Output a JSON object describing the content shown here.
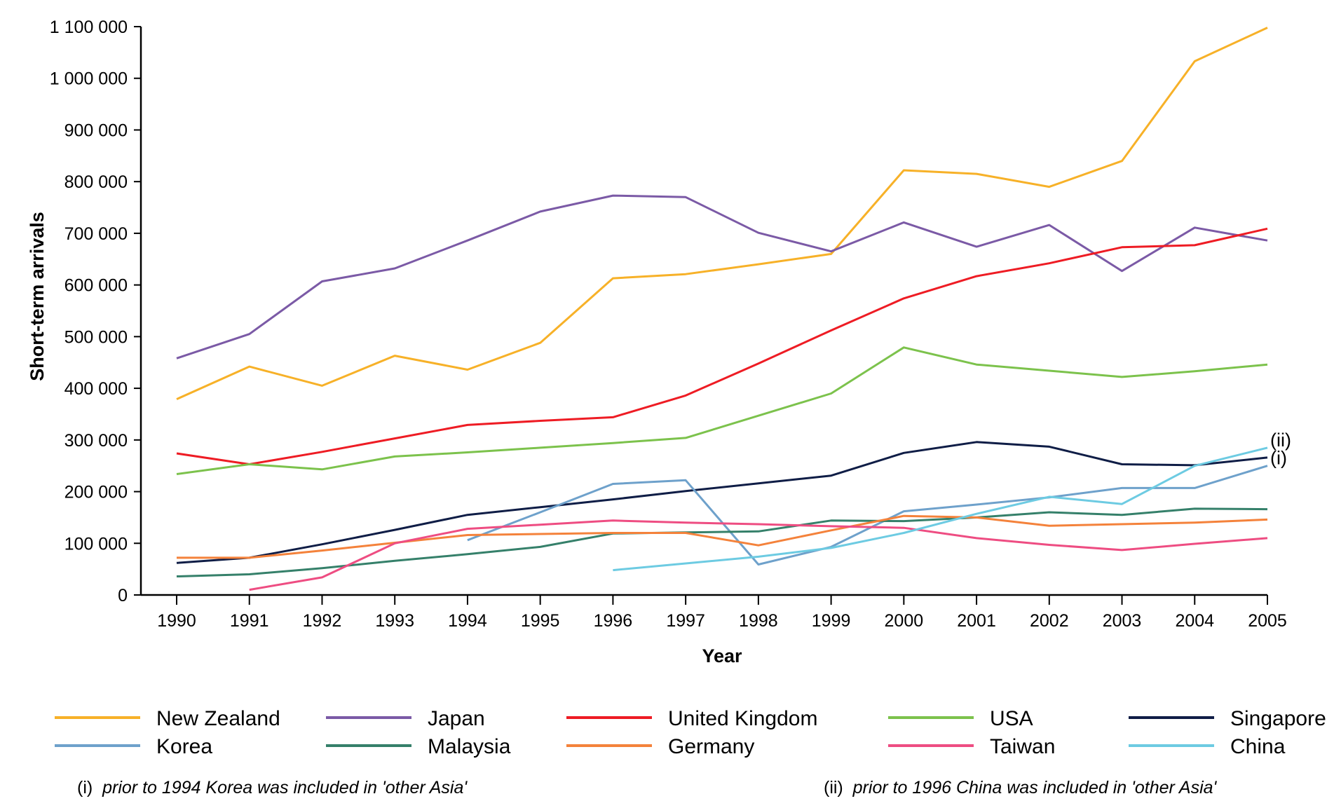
{
  "chart_data": {
    "type": "line",
    "title": "",
    "xlabel": "Year",
    "ylabel": "Short-term arrivals",
    "x": [
      1990,
      1991,
      1992,
      1993,
      1994,
      1995,
      1996,
      1997,
      1998,
      1999,
      2000,
      2001,
      2002,
      2003,
      2004,
      2005
    ],
    "ylim": [
      0,
      1100000
    ],
    "yticks": [
      0,
      100000,
      200000,
      300000,
      400000,
      500000,
      600000,
      700000,
      800000,
      900000,
      1000000,
      1100000
    ],
    "ytick_labels": [
      "0",
      "100 000",
      "200 000",
      "300 000",
      "400 000",
      "500 000",
      "600 000",
      "700 000",
      "800 000",
      "900 000",
      "1 000 000",
      "1 100 000"
    ],
    "xtick_labels": [
      "1990",
      "1991",
      "1992",
      "1993",
      "1994",
      "1995",
      "1996",
      "1997",
      "1998",
      "1999",
      "2000",
      "2001",
      "2002",
      "2003",
      "2004",
      "2005"
    ],
    "grid": false,
    "legend_position": "bottom",
    "series": [
      {
        "name": "New Zealand",
        "color": "#f7b128",
        "values": [
          379000,
          442000,
          405000,
          463000,
          436000,
          488000,
          613000,
          621000,
          640000,
          660000,
          822000,
          815000,
          790000,
          840000,
          1033000,
          1098000
        ]
      },
      {
        "name": "Japan",
        "color": "#7b5aa6",
        "values": [
          458000,
          505000,
          607000,
          632000,
          686000,
          742000,
          773000,
          770000,
          701000,
          665000,
          721000,
          674000,
          716000,
          627000,
          711000,
          686000
        ]
      },
      {
        "name": "United Kingdom",
        "color": "#ee1c24",
        "values": [
          274000,
          253000,
          277000,
          303000,
          329000,
          337000,
          344000,
          386000,
          448000,
          512000,
          574000,
          617000,
          642000,
          673000,
          677000,
          709000
        ]
      },
      {
        "name": "USA",
        "color": "#7cc24c",
        "values": [
          234000,
          253000,
          243000,
          268000,
          276000,
          285000,
          294000,
          304000,
          347000,
          390000,
          479000,
          446000,
          434000,
          422000,
          433000,
          446000
        ]
      },
      {
        "name": "Singapore",
        "color": "#0f1d46",
        "values": [
          62000,
          72000,
          98000,
          126000,
          155000,
          170000,
          185000,
          201000,
          216000,
          231000,
          275000,
          296000,
          287000,
          253000,
          251000,
          266000
        ]
      },
      {
        "name": "Korea",
        "color": "#6ea1cb",
        "values": [
          null,
          null,
          null,
          null,
          106000,
          160000,
          215000,
          222000,
          59000,
          93000,
          162000,
          175000,
          189000,
          207000,
          207000,
          250000
        ]
      },
      {
        "name": "Malaysia",
        "color": "#35806a",
        "values": [
          36000,
          40000,
          52000,
          66000,
          79000,
          93000,
          119000,
          121000,
          123000,
          144000,
          143000,
          150000,
          160000,
          155000,
          167000,
          166000
        ]
      },
      {
        "name": "Germany",
        "color": "#f4823b",
        "values": [
          72000,
          72000,
          86000,
          101000,
          116000,
          118000,
          120000,
          120000,
          96000,
          125000,
          153000,
          150000,
          134000,
          137000,
          140000,
          146000
        ]
      },
      {
        "name": "Taiwan",
        "color": "#ee4d82",
        "values": [
          null,
          10000,
          34000,
          100000,
          128000,
          136000,
          144000,
          140000,
          137000,
          133000,
          130000,
          110000,
          97000,
          87000,
          99000,
          110000
        ]
      },
      {
        "name": "China",
        "color": "#6dcbe2",
        "values": [
          null,
          null,
          null,
          null,
          null,
          null,
          48000,
          61000,
          74000,
          91000,
          120000,
          157000,
          190000,
          176000,
          250000,
          285000
        ]
      }
    ],
    "annotations": [
      {
        "text": "(ii)",
        "series": "China"
      },
      {
        "text": "(i)",
        "series": "Korea"
      }
    ],
    "notes": {
      "left": "(i)  prior to 1994 Korea was included in 'other Asia'",
      "right": "(ii)  prior to 1996 China was included in 'other Asia'"
    }
  }
}
